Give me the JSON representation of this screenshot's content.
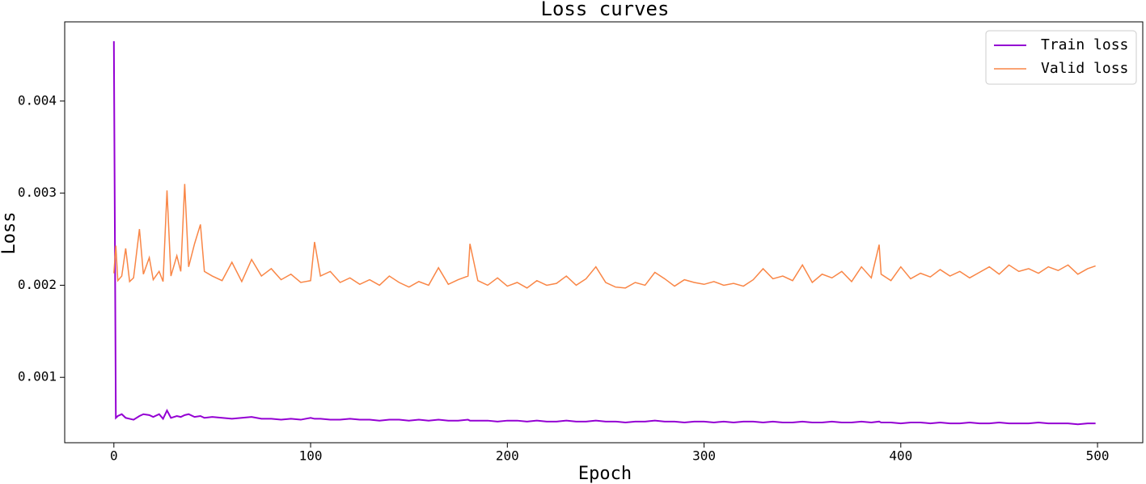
{
  "chart_data": {
    "type": "line",
    "title": "Loss curves",
    "x_label": "Epoch",
    "y_label": "Loss",
    "x": [
      0,
      1,
      2,
      4,
      6,
      8,
      10,
      13,
      15,
      18,
      20,
      23,
      25,
      27,
      29,
      32,
      34,
      36,
      38,
      41,
      44,
      46,
      50,
      55,
      60,
      65,
      70,
      75,
      80,
      85,
      90,
      95,
      100,
      102,
      105,
      110,
      115,
      120,
      125,
      130,
      135,
      140,
      145,
      150,
      155,
      160,
      165,
      170,
      175,
      180,
      181,
      185,
      190,
      195,
      200,
      205,
      210,
      215,
      220,
      225,
      230,
      235,
      240,
      245,
      250,
      255,
      260,
      265,
      270,
      275,
      280,
      285,
      290,
      295,
      300,
      305,
      310,
      315,
      320,
      325,
      330,
      335,
      340,
      345,
      350,
      355,
      360,
      365,
      370,
      375,
      380,
      385,
      389,
      390,
      395,
      400,
      405,
      410,
      415,
      420,
      425,
      430,
      435,
      440,
      445,
      450,
      455,
      460,
      465,
      470,
      475,
      480,
      485,
      490,
      495,
      499
    ],
    "series": [
      {
        "name": "Train loss",
        "color": "#9400d3",
        "values": [
          0.00465,
          0.00056,
          0.00058,
          0.0006,
          0.00056,
          0.00055,
          0.00054,
          0.00058,
          0.0006,
          0.00059,
          0.00057,
          0.0006,
          0.00055,
          0.00064,
          0.00056,
          0.00058,
          0.00057,
          0.00059,
          0.0006,
          0.00057,
          0.00058,
          0.00056,
          0.00057,
          0.00056,
          0.00055,
          0.00056,
          0.00057,
          0.00055,
          0.00055,
          0.00054,
          0.00055,
          0.00054,
          0.00056,
          0.00055,
          0.00055,
          0.00054,
          0.00054,
          0.00055,
          0.00054,
          0.00054,
          0.00053,
          0.00054,
          0.00054,
          0.00053,
          0.00054,
          0.00053,
          0.00054,
          0.00053,
          0.00053,
          0.00054,
          0.00053,
          0.00053,
          0.00053,
          0.00052,
          0.00053,
          0.00053,
          0.00052,
          0.00053,
          0.00052,
          0.00052,
          0.00053,
          0.00052,
          0.00052,
          0.00053,
          0.00052,
          0.00052,
          0.00051,
          0.00052,
          0.00052,
          0.00053,
          0.00052,
          0.00052,
          0.00051,
          0.00052,
          0.00052,
          0.00051,
          0.00052,
          0.00051,
          0.00052,
          0.00052,
          0.00051,
          0.00052,
          0.00051,
          0.00051,
          0.00052,
          0.00051,
          0.00051,
          0.00052,
          0.00051,
          0.00051,
          0.00052,
          0.00051,
          0.00052,
          0.00051,
          0.00051,
          0.0005,
          0.00051,
          0.00051,
          0.0005,
          0.00051,
          0.0005,
          0.0005,
          0.00051,
          0.0005,
          0.0005,
          0.00051,
          0.0005,
          0.0005,
          0.0005,
          0.00051,
          0.0005,
          0.0005,
          0.0005,
          0.00049,
          0.0005,
          0.0005
        ]
      },
      {
        "name": "Valid loss",
        "color": "#f98646",
        "values": [
          0.00213,
          0.00243,
          0.00205,
          0.0021,
          0.0024,
          0.00204,
          0.00208,
          0.00261,
          0.00212,
          0.0023,
          0.00206,
          0.00215,
          0.00204,
          0.00303,
          0.0021,
          0.00232,
          0.00215,
          0.0031,
          0.0022,
          0.00245,
          0.00266,
          0.00215,
          0.0021,
          0.00205,
          0.00225,
          0.00204,
          0.00228,
          0.0021,
          0.00218,
          0.00206,
          0.00212,
          0.00203,
          0.00205,
          0.00247,
          0.0021,
          0.00215,
          0.00203,
          0.00208,
          0.00201,
          0.00206,
          0.002,
          0.0021,
          0.00203,
          0.00198,
          0.00204,
          0.002,
          0.00219,
          0.00201,
          0.00206,
          0.0021,
          0.00245,
          0.00205,
          0.002,
          0.00208,
          0.00199,
          0.00203,
          0.00197,
          0.00205,
          0.002,
          0.00202,
          0.0021,
          0.002,
          0.00207,
          0.0022,
          0.00203,
          0.00198,
          0.00197,
          0.00203,
          0.002,
          0.00214,
          0.00207,
          0.00199,
          0.00206,
          0.00203,
          0.00201,
          0.00204,
          0.002,
          0.00202,
          0.00199,
          0.00206,
          0.00218,
          0.00207,
          0.0021,
          0.00205,
          0.00222,
          0.00203,
          0.00212,
          0.00208,
          0.00215,
          0.00204,
          0.0022,
          0.00208,
          0.00244,
          0.00212,
          0.00205,
          0.0022,
          0.00207,
          0.00213,
          0.00209,
          0.00217,
          0.0021,
          0.00215,
          0.00208,
          0.00214,
          0.0022,
          0.00212,
          0.00222,
          0.00215,
          0.00218,
          0.00213,
          0.0022,
          0.00216,
          0.00222,
          0.00212,
          0.00218,
          0.00221
        ]
      }
    ],
    "xlim": [
      -25,
      523
    ],
    "ylim": [
      0.00029,
      0.00486
    ],
    "xticks": [
      0,
      100,
      200,
      300,
      400,
      500
    ],
    "yticks": [
      0.001,
      0.002,
      0.003,
      0.004
    ],
    "grid": false,
    "legend": "upper right"
  }
}
